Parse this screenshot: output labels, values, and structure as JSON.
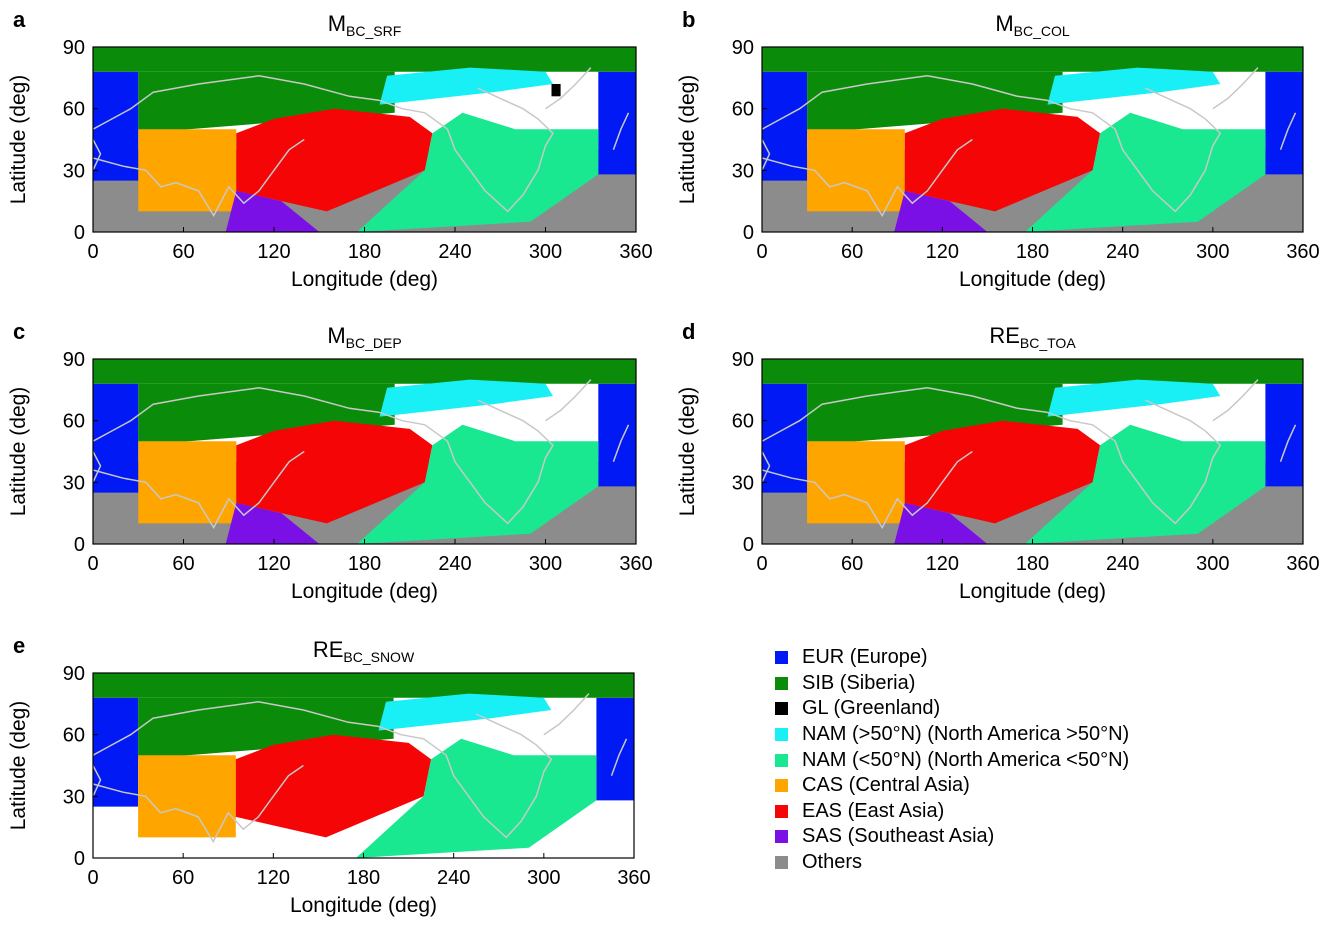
{
  "colors": {
    "EUR": "#0019f5",
    "SIB": "#0a8c0a",
    "GL": "#000000",
    "NAM_N": "#19f0f5",
    "NAM_S": "#19e890",
    "CAS": "#ffa500",
    "EAS": "#f50505",
    "SAS": "#7a10e6",
    "OTH": "#8c8c8c",
    "coast": "#c8c8c8"
  },
  "panels": [
    {
      "letter": "a",
      "title_main": "M",
      "title_sub": "BC_SRF",
      "xlabel": "Longitude (deg)",
      "ylabel": "Latitude (deg)",
      "xticks": [
        "0",
        "60",
        "120",
        "180",
        "240",
        "300",
        "360"
      ],
      "yticks": [
        "0",
        "30",
        "60",
        "90"
      ],
      "regions": [
        "OTH",
        "EUR",
        "SIB",
        "CAS",
        "EAS",
        "SAS",
        "NAM_N",
        "NAM_S",
        "GL"
      ]
    },
    {
      "letter": "b",
      "title_main": "M",
      "title_sub": "BC_COL",
      "xlabel": "Longitude (deg)",
      "ylabel": "Latitude (deg)",
      "xticks": [
        "0",
        "60",
        "120",
        "180",
        "240",
        "300",
        "360"
      ],
      "yticks": [
        "0",
        "30",
        "60",
        "90"
      ],
      "regions": [
        "OTH",
        "EUR",
        "SIB",
        "CAS",
        "EAS",
        "SAS",
        "NAM_N",
        "NAM_S"
      ]
    },
    {
      "letter": "c",
      "title_main": "M",
      "title_sub": "BC_DEP",
      "xlabel": "Longitude (deg)",
      "ylabel": "Latitude (deg)",
      "xticks": [
        "0",
        "60",
        "120",
        "180",
        "240",
        "300",
        "360"
      ],
      "yticks": [
        "0",
        "30",
        "60",
        "90"
      ],
      "regions": [
        "OTH",
        "EUR",
        "SIB",
        "CAS",
        "EAS",
        "SAS",
        "NAM_N",
        "NAM_S"
      ]
    },
    {
      "letter": "d",
      "title_main": "RE",
      "title_sub": "BC_TOA",
      "xlabel": "Longitude (deg)",
      "ylabel": "Latitude (deg)",
      "xticks": [
        "0",
        "60",
        "120",
        "180",
        "240",
        "300",
        "360"
      ],
      "yticks": [
        "0",
        "30",
        "60",
        "90"
      ],
      "regions": [
        "OTH",
        "EUR",
        "SIB",
        "CAS",
        "EAS",
        "SAS",
        "NAM_N",
        "NAM_S"
      ]
    },
    {
      "letter": "e",
      "title_main": "RE",
      "title_sub": "BC_SNOW",
      "xlabel": "Longitude (deg)",
      "ylabel": "Latitude (deg)",
      "xticks": [
        "0",
        "60",
        "120",
        "180",
        "240",
        "300",
        "360"
      ],
      "yticks": [
        "0",
        "30",
        "60",
        "90"
      ],
      "regions": [
        "EUR",
        "SIB",
        "CAS",
        "EAS",
        "NAM_N",
        "NAM_S"
      ]
    }
  ],
  "legend": [
    {
      "key": "EUR",
      "label": "EUR (Europe)"
    },
    {
      "key": "SIB",
      "label": "SIB (Siberia)"
    },
    {
      "key": "GL",
      "label": "GL (Greenland)"
    },
    {
      "key": "NAM_N",
      "label": "NAM (>50°N) (North America >50°N)"
    },
    {
      "key": "NAM_S",
      "label": "NAM (<50°N) (North America <50°N)"
    },
    {
      "key": "CAS",
      "label": "CAS (Central Asia)"
    },
    {
      "key": "EAS",
      "label": "EAS (East Asia)"
    },
    {
      "key": "SAS",
      "label": "SAS (Southeast Asia)"
    },
    {
      "key": "OTH",
      "label": "Others"
    }
  ]
}
